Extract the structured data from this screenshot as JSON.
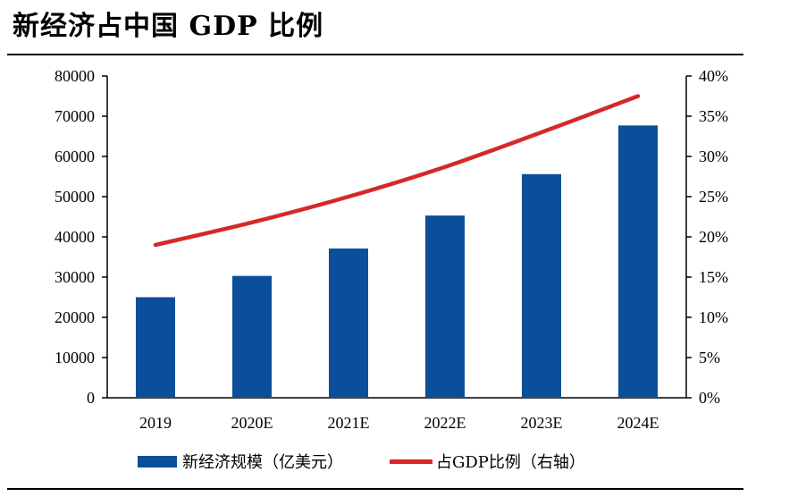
{
  "title": "新经济占中国 GDP 比例",
  "colors": {
    "bar": "#0b4f9a",
    "line": "#d62828"
  },
  "chart_data": {
    "type": "bar+line",
    "title": "新经济占中国 GDP 比例",
    "categories": [
      "2019",
      "2020E",
      "2021E",
      "2022E",
      "2023E",
      "2024E"
    ],
    "series": [
      {
        "name": "新经济规模（亿美元）",
        "type": "bar",
        "axis": "left",
        "values": [
          25000,
          30300,
          37100,
          45300,
          55600,
          67700
        ]
      },
      {
        "name": "占GDP比例（右轴）",
        "type": "line",
        "axis": "right",
        "values": [
          19.0,
          21.8,
          25.0,
          28.7,
          33.0,
          37.5
        ]
      }
    ],
    "left_axis": {
      "range": [
        0,
        80000
      ],
      "ticks": [
        "0",
        "10000",
        "20000",
        "30000",
        "40000",
        "50000",
        "60000",
        "70000",
        "80000"
      ]
    },
    "right_axis": {
      "range": [
        0,
        40
      ],
      "ticks": [
        "0%",
        "5%",
        "10%",
        "15%",
        "20%",
        "25%",
        "30%",
        "35%",
        "40%"
      ]
    },
    "legend": {
      "position": "bottom",
      "bar_label": "新经济规模（亿美元）",
      "line_label": "占GDP比例（右轴）"
    }
  }
}
